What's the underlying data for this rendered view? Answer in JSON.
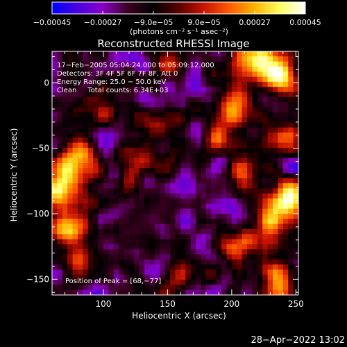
{
  "chart_data": {
    "type": "heatmap",
    "title": "Reconstructed RHESSI Image",
    "xlabel": "Heliocentric X (arcsec)",
    "ylabel": "Heliocentric Y (arcsec)",
    "xlim": [
      60,
      252
    ],
    "ylim": [
      -162,
      24
    ],
    "xticks": [
      100,
      150,
      200,
      250
    ],
    "yticks": [
      0,
      -50,
      -100,
      -150
    ],
    "xtick_labels": [
      "100",
      "150",
      "200",
      "250"
    ],
    "ytick_labels": [
      "0",
      "−50",
      "−100",
      "−150"
    ],
    "colorbar": {
      "range": [
        -0.00045,
        0.00045
      ],
      "tick_labels": [
        "−0.00045",
        "−0.00027",
        "−9.0e−05",
        "9.0e−05",
        "0.00027",
        "0.00045"
      ],
      "units_label": "(photons cm⁻² s⁻¹ asec⁻²)",
      "colormap": [
        "#0000ff",
        "#4a00e0",
        "#8a00c8",
        "#3a0020",
        "#000000",
        "#5a0000",
        "#c81400",
        "#ff5a00",
        "#ffb400",
        "#ffff60",
        "#ffffff"
      ]
    },
    "info_lines": [
      "17−Feb−2005 05:04:24.000 to 05:09:12.000",
      "Detectors: 3F 4F 5F 6F 7F 8F, Att 0",
      "Energy Range: 25.0 − 50.0 keV",
      "Clean     Total counts: 6.34E+03"
    ],
    "peak_label": "Position of Peak = [68,−77]",
    "peak": [
      68,
      -77
    ],
    "hot_regions": [
      {
        "x": 66,
        "y": -80,
        "strength": 1.0
      },
      {
        "x": 80,
        "y": -60,
        "strength": 0.75
      },
      {
        "x": 70,
        "y": -110,
        "strength": 0.8
      },
      {
        "x": 84,
        "y": -135,
        "strength": 0.5
      },
      {
        "x": 238,
        "y": 5,
        "strength": 0.95
      },
      {
        "x": 218,
        "y": 18,
        "strength": 0.85
      },
      {
        "x": 245,
        "y": -40,
        "strength": 0.7
      },
      {
        "x": 242,
        "y": -90,
        "strength": 0.9
      },
      {
        "x": 230,
        "y": -110,
        "strength": 0.7
      },
      {
        "x": 210,
        "y": -70,
        "strength": 0.55
      },
      {
        "x": 200,
        "y": -20,
        "strength": 0.55
      },
      {
        "x": 190,
        "y": -40,
        "strength": 0.45
      },
      {
        "x": 205,
        "y": -125,
        "strength": 0.45
      },
      {
        "x": 120,
        "y": -60,
        "strength": 0.4
      },
      {
        "x": 140,
        "y": -40,
        "strength": 0.35
      },
      {
        "x": 100,
        "y": -20,
        "strength": 0.4
      },
      {
        "x": 165,
        "y": -145,
        "strength": 0.4
      },
      {
        "x": 235,
        "y": -150,
        "strength": 0.45
      },
      {
        "x": 150,
        "y": 10,
        "strength": 0.3
      }
    ]
  },
  "footer": {
    "timestamp": "28−Apr−2022 13:02"
  }
}
